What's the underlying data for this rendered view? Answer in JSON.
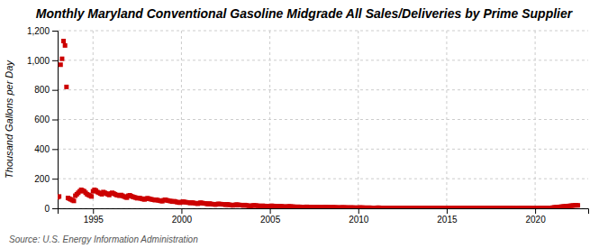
{
  "chart_data": {
    "type": "scatter",
    "title": "Monthly Maryland Conventional Gasoline Midgrade All Sales/Deliveries by Prime Supplier",
    "ylabel": "Thousand Gallons per Day",
    "source": "Source: U.S. Energy Information Administration",
    "color": "#cc0000",
    "marker": "square",
    "grid": true,
    "xlim": [
      1993.0,
      2023.0
    ],
    "xticks": [
      1995,
      2000,
      2005,
      2010,
      2015,
      2020
    ],
    "ylim": [
      0,
      1200
    ],
    "yticks": [
      0,
      200,
      400,
      600,
      800,
      {
        "value": 1000,
        "label": "1,000"
      },
      {
        "value": 1200,
        "label": "1,200"
      }
    ],
    "x": [
      1993.0,
      1993.083,
      1993.167,
      1993.25,
      1993.333,
      1993.417,
      1993.5,
      1993.583,
      1993.667,
      1993.75,
      1993.833,
      1993.917,
      1994.0,
      1994.083,
      1994.167,
      1994.25,
      1994.333,
      1994.417,
      1994.5,
      1994.583,
      1994.667,
      1994.75,
      1994.833,
      1994.917,
      1995.0,
      1995.083,
      1995.167,
      1995.25,
      1995.333,
      1995.417,
      1995.5,
      1995.583,
      1995.667,
      1995.75,
      1995.833,
      1995.917,
      1996.0,
      1996.083,
      1996.167,
      1996.25,
      1996.333,
      1996.417,
      1996.5,
      1996.583,
      1996.667,
      1996.75,
      1996.833,
      1996.917,
      1997.0,
      1997.083,
      1997.167,
      1997.25,
      1997.333,
      1997.417,
      1997.5,
      1997.583,
      1997.667,
      1997.75,
      1997.833,
      1997.917,
      1998.0,
      1998.083,
      1998.167,
      1998.25,
      1998.333,
      1998.417,
      1998.5,
      1998.583,
      1998.667,
      1998.75,
      1998.833,
      1998.917,
      1999.0,
      1999.083,
      1999.167,
      1999.25,
      1999.333,
      1999.417,
      1999.5,
      1999.583,
      1999.667,
      1999.75,
      1999.833,
      1999.917,
      2000.0,
      2000.083,
      2000.167,
      2000.25,
      2000.333,
      2000.417,
      2000.5,
      2000.583,
      2000.667,
      2000.75,
      2000.833,
      2000.917,
      2001.0,
      2001.083,
      2001.167,
      2001.25,
      2001.333,
      2001.417,
      2001.5,
      2001.583,
      2001.667,
      2001.75,
      2001.833,
      2001.917,
      2002.0,
      2002.083,
      2002.167,
      2002.25,
      2002.333,
      2002.417,
      2002.5,
      2002.583,
      2002.667,
      2002.75,
      2002.833,
      2002.917,
      2003.0,
      2003.083,
      2003.167,
      2003.25,
      2003.333,
      2003.417,
      2003.5,
      2003.583,
      2003.667,
      2003.75,
      2003.833,
      2003.917,
      2004.0,
      2004.083,
      2004.167,
      2004.25,
      2004.333,
      2004.417,
      2004.5,
      2004.583,
      2004.667,
      2004.75,
      2004.833,
      2004.917,
      2005.0,
      2005.083,
      2005.167,
      2005.25,
      2005.333,
      2005.417,
      2005.5,
      2005.583,
      2005.667,
      2005.75,
      2005.833,
      2005.917,
      2006.0,
      2006.083,
      2006.167,
      2006.25,
      2006.333,
      2006.417,
      2006.5,
      2006.583,
      2006.667,
      2006.75,
      2006.833,
      2006.917,
      2007.0,
      2007.083,
      2007.167,
      2007.25,
      2007.333,
      2007.417,
      2007.5,
      2007.583,
      2007.667,
      2007.75,
      2007.833,
      2007.917,
      2008.0,
      2008.083,
      2008.167,
      2008.25,
      2008.333,
      2008.417,
      2008.5,
      2008.583,
      2008.667,
      2008.75,
      2008.833,
      2008.917,
      2009.0,
      2009.083,
      2009.167,
      2009.25,
      2009.333,
      2009.417,
      2009.5,
      2009.583,
      2009.667,
      2009.75,
      2009.833,
      2009.917,
      2010.0,
      2010.083,
      2010.167,
      2010.25,
      2010.333,
      2010.417,
      2010.5,
      2010.583,
      2010.667,
      2010.75,
      2010.833,
      2010.917,
      2011.0,
      2011.083,
      2011.167,
      2011.25,
      2011.333,
      2011.417,
      2011.5,
      2011.583,
      2011.667,
      2011.75,
      2011.833,
      2011.917,
      2012.0,
      2012.083,
      2012.167,
      2012.25,
      2012.333,
      2012.417,
      2012.5,
      2012.583,
      2012.667,
      2012.75,
      2012.833,
      2012.917,
      2013.0,
      2013.083,
      2013.167,
      2013.25,
      2013.333,
      2013.417,
      2013.5,
      2013.583,
      2013.667,
      2013.75,
      2013.833,
      2013.917,
      2014.0,
      2014.083,
      2014.167,
      2014.25,
      2014.333,
      2014.417,
      2014.5,
      2014.583,
      2014.667,
      2014.75,
      2014.833,
      2014.917,
      2015.0,
      2015.083,
      2015.167,
      2015.25,
      2015.333,
      2015.417,
      2015.5,
      2015.583,
      2015.667,
      2015.75,
      2015.833,
      2015.917,
      2016.0,
      2016.083,
      2016.167,
      2016.25,
      2016.333,
      2016.417,
      2016.5,
      2016.583,
      2016.667,
      2016.75,
      2016.833,
      2016.917,
      2017.0,
      2017.083,
      2017.167,
      2017.25,
      2017.333,
      2017.417,
      2017.5,
      2017.583,
      2017.667,
      2017.75,
      2017.833,
      2017.917,
      2018.0,
      2018.083,
      2018.167,
      2018.25,
      2018.333,
      2018.417,
      2018.5,
      2018.583,
      2018.667,
      2018.75,
      2018.833,
      2018.917,
      2019.0,
      2019.083,
      2019.167,
      2019.25,
      2019.333,
      2019.417,
      2019.5,
      2019.583,
      2019.667,
      2019.75,
      2019.833,
      2019.917,
      2020.0,
      2020.083,
      2020.167,
      2020.25,
      2020.333,
      2020.417,
      2020.5,
      2020.583,
      2020.667,
      2020.75,
      2020.833,
      2020.917,
      2021.0,
      2021.083,
      2021.167,
      2021.25,
      2021.333,
      2021.417,
      2021.5,
      2021.583,
      2021.667,
      2021.75,
      2021.833,
      2021.917,
      2022.0,
      2022.083,
      2022.167,
      2022.25,
      2022.333,
      2022.417
    ],
    "values": [
      75,
      80,
      970,
      1010,
      1130,
      1100,
      820,
      70,
      65,
      60,
      55,
      50,
      85,
      95,
      105,
      115,
      125,
      120,
      115,
      105,
      95,
      90,
      85,
      80,
      115,
      125,
      120,
      110,
      105,
      100,
      95,
      110,
      105,
      100,
      95,
      90,
      100,
      105,
      100,
      95,
      90,
      88,
      85,
      90,
      85,
      80,
      75,
      72,
      85,
      88,
      82,
      78,
      75,
      72,
      68,
      70,
      68,
      65,
      62,
      60,
      65,
      68,
      65,
      62,
      60,
      58,
      55,
      58,
      55,
      52,
      50,
      48,
      55,
      58,
      55,
      52,
      50,
      48,
      45,
      48,
      45,
      42,
      40,
      38,
      42,
      45,
      43,
      41,
      40,
      38,
      36,
      39,
      37,
      35,
      33,
      31,
      35,
      38,
      36,
      34,
      33,
      31,
      29,
      32,
      30,
      28,
      27,
      25,
      28,
      30,
      29,
      28,
      27,
      26,
      24,
      27,
      25,
      23,
      22,
      20,
      22,
      25,
      24,
      23,
      22,
      21,
      19,
      22,
      20,
      18,
      17,
      15,
      18,
      20,
      19,
      18,
      17,
      16,
      15,
      17,
      16,
      15,
      14,
      13,
      15,
      17,
      16,
      15,
      14,
      13,
      12,
      14,
      13,
      12,
      11,
      10,
      12,
      13,
      12,
      11,
      11,
      10,
      9,
      10,
      10,
      9,
      8,
      8,
      9,
      10,
      9,
      9,
      8,
      8,
      7,
      8,
      8,
      7,
      7,
      6,
      7,
      8,
      8,
      7,
      7,
      6,
      6,
      7,
      6,
      6,
      5,
      5,
      5,
      6,
      6,
      5,
      5,
      5,
      4,
      5,
      5,
      4,
      4,
      4,
      4,
      5,
      5,
      4,
      4,
      4,
      3,
      4,
      4,
      3,
      3,
      3,
      3,
      4,
      4,
      3,
      3,
      3,
      3,
      3,
      3,
      3,
      2,
      2,
      3,
      3,
      3,
      3,
      2,
      2,
      2,
      3,
      2,
      2,
      2,
      2,
      2,
      3,
      3,
      2,
      2,
      2,
      2,
      2,
      2,
      2,
      2,
      2,
      2,
      2,
      2,
      2,
      2,
      2,
      2,
      2,
      2,
      2,
      1,
      1,
      2,
      2,
      2,
      2,
      2,
      2,
      2,
      2,
      2,
      2,
      2,
      2,
      2,
      2,
      2,
      2,
      2,
      2,
      2,
      2,
      2,
      2,
      2,
      2,
      2,
      2,
      2,
      2,
      2,
      2,
      2,
      2,
      2,
      2,
      2,
      2,
      2,
      2,
      2,
      2,
      2,
      2,
      2,
      2,
      2,
      2,
      1,
      1,
      1,
      2,
      2,
      2,
      2,
      2,
      2,
      2,
      2,
      1,
      1,
      1,
      1,
      1,
      1,
      2,
      2,
      2,
      2,
      2,
      2,
      2,
      2,
      3,
      5,
      6,
      7,
      8,
      9,
      10,
      11,
      12,
      13,
      14,
      15,
      16,
      17,
      18,
      19,
      20,
      21,
      20
    ]
  }
}
